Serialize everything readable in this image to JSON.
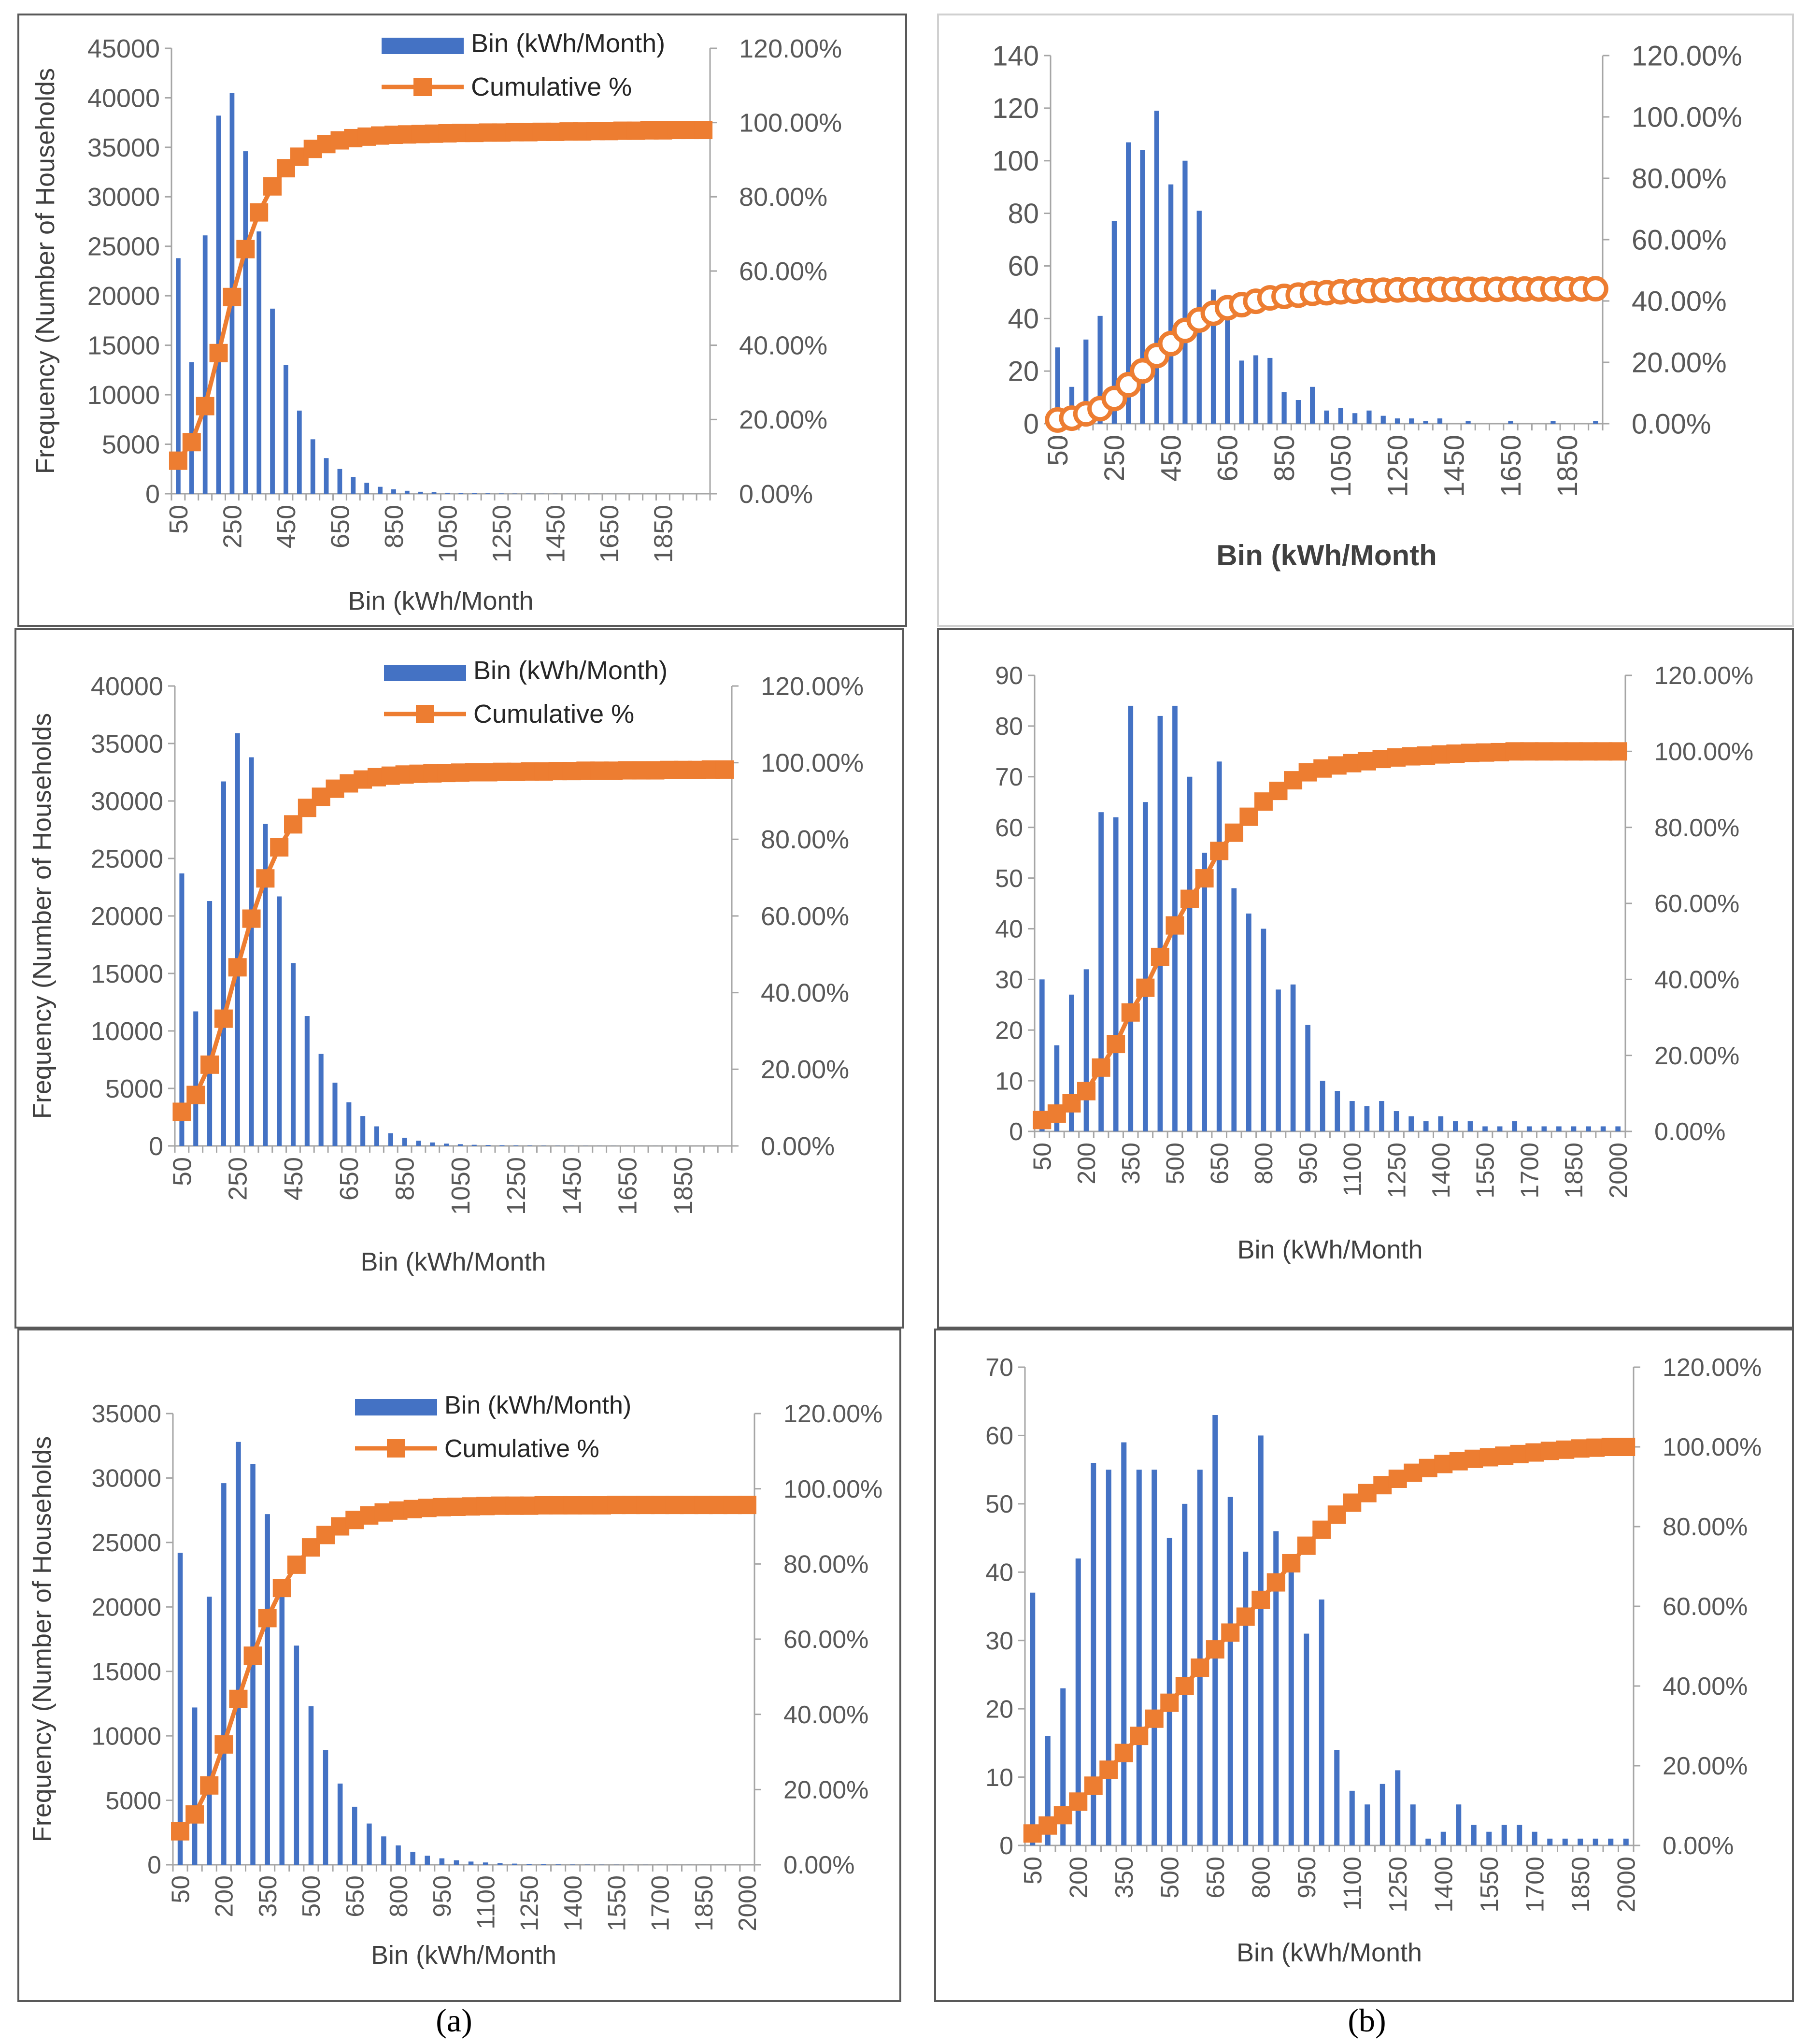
{
  "captions": {
    "a": "(a)",
    "b": "(b)"
  },
  "colors": {
    "bar": "#4472c4",
    "line": "#ed7d31"
  },
  "chart_data": [
    {
      "id": "a1",
      "type": "bar+line",
      "bin_start": 50,
      "bin_step": 50,
      "bin_end": 2000,
      "tick_labels": [
        "50",
        "250",
        "450",
        "650",
        "850",
        "1050",
        "1250",
        "1450",
        "1650",
        "1850"
      ],
      "ylabel": "Frequency (Number of Households",
      "xlabel": "Bin (kWh/Month",
      "ylim": [
        0,
        45000
      ],
      "yticks": [
        "0",
        "5000",
        "10000",
        "15000",
        "20000",
        "25000",
        "30000",
        "35000",
        "40000",
        "45000"
      ],
      "y2lim": [
        0,
        1.2
      ],
      "y2ticks": [
        "0.00%",
        "20.00%",
        "40.00%",
        "60.00%",
        "80.00%",
        "100.00%",
        "120.00%"
      ],
      "legend": {
        "bar": "Bin (kWh/Month)",
        "line": "Cumulative %",
        "position": "top-right"
      },
      "line_marker": "filled-square",
      "series": [
        {
          "name": "Bin (kWh/Month)",
          "kind": "bar",
          "values": [
            23800,
            13300,
            26100,
            38200,
            40500,
            34600,
            26500,
            18700,
            13000,
            8400,
            5500,
            3600,
            2500,
            1700,
            1100,
            700,
            450,
            300,
            200,
            150,
            100,
            80,
            60,
            40,
            30,
            20,
            15,
            10,
            8,
            6,
            5,
            4,
            3,
            3,
            2,
            2,
            1,
            1,
            1,
            1
          ]
        },
        {
          "name": "Cumulative %",
          "kind": "line",
          "values": [
            0.089,
            0.139,
            0.236,
            0.379,
            0.53,
            0.659,
            0.758,
            0.828,
            0.877,
            0.908,
            0.929,
            0.942,
            0.952,
            0.958,
            0.962,
            0.965,
            0.967,
            0.968,
            0.969,
            0.97,
            0.971,
            0.972,
            0.972,
            0.973,
            0.973,
            0.974,
            0.974,
            0.975,
            0.975,
            0.976,
            0.976,
            0.977,
            0.977,
            0.978,
            0.978,
            0.979,
            0.979,
            0.98,
            0.98,
            0.98
          ]
        }
      ]
    },
    {
      "id": "b1",
      "type": "bar+line",
      "bin_start": 50,
      "bin_step": 50,
      "bin_end": 1950,
      "tick_labels": [
        "50",
        "250",
        "450",
        "650",
        "850",
        "1050",
        "1250",
        "1450",
        "1650",
        "1850"
      ],
      "ylabel": "",
      "xlabel": "Bin (kWh/Month",
      "ylim": [
        0,
        140
      ],
      "yticks": [
        "0",
        "20",
        "40",
        "60",
        "80",
        "100",
        "120",
        "140"
      ],
      "y2lim": [
        0,
        1.2
      ],
      "y2ticks": [
        "0.00%",
        "20.00%",
        "40.00%",
        "60.00%",
        "80.00%",
        "100.00%",
        "120.00%"
      ],
      "legend": null,
      "line_marker": "open-circle",
      "series": [
        {
          "name": "",
          "kind": "bar",
          "values": [
            29,
            14,
            32,
            41,
            77,
            107,
            104,
            119,
            91,
            100,
            81,
            51,
            41,
            24,
            26,
            25,
            12,
            9,
            14,
            5,
            6,
            4,
            5,
            3,
            2,
            2,
            1,
            2,
            0,
            1,
            0,
            0,
            1,
            0,
            0,
            1,
            0,
            0,
            1
          ]
        },
        {
          "name": "",
          "kind": "line",
          "values": [
            0.012,
            0.018,
            0.032,
            0.049,
            0.082,
            0.127,
            0.172,
            0.222,
            0.261,
            0.304,
            0.338,
            0.36,
            0.378,
            0.388,
            0.399,
            0.41,
            0.415,
            0.419,
            0.425,
            0.427,
            0.43,
            0.432,
            0.434,
            0.435,
            0.436,
            0.437,
            0.437,
            0.438,
            0.438,
            0.438,
            0.438,
            0.438,
            0.439,
            0.439,
            0.439,
            0.439,
            0.439,
            0.439,
            0.44
          ]
        }
      ]
    },
    {
      "id": "a2",
      "type": "bar+line",
      "bin_start": 50,
      "bin_step": 50,
      "bin_end": 2000,
      "tick_labels": [
        "50",
        "250",
        "450",
        "650",
        "850",
        "1050",
        "1250",
        "1450",
        "1650",
        "1850"
      ],
      "ylabel": "Frequency (Number of Households",
      "xlabel": "Bin (kWh/Month",
      "ylim": [
        0,
        40000
      ],
      "yticks": [
        "0",
        "5000",
        "10000",
        "15000",
        "20000",
        "25000",
        "30000",
        "35000",
        "40000"
      ],
      "y2lim": [
        0,
        1.2
      ],
      "y2ticks": [
        "0.00%",
        "20.00%",
        "40.00%",
        "60.00%",
        "80.00%",
        "100.00%",
        "120.00%"
      ],
      "legend": {
        "bar": "Bin (kWh/Month)",
        "line": "Cumulative %",
        "position": "top-right"
      },
      "line_marker": "filled-square",
      "series": [
        {
          "name": "Bin (kWh/Month)",
          "kind": "bar",
          "values": [
            23700,
            11700,
            21300,
            31700,
            35900,
            33800,
            28000,
            21700,
            15900,
            11300,
            8000,
            5500,
            3800,
            2600,
            1700,
            1100,
            700,
            450,
            300,
            200,
            150,
            100,
            80,
            60,
            40,
            30,
            20,
            15,
            10,
            8,
            6,
            5,
            4,
            3,
            3,
            2,
            2,
            1,
            1,
            1
          ]
        },
        {
          "name": "Cumulative %",
          "kind": "line",
          "values": [
            0.089,
            0.133,
            0.212,
            0.332,
            0.466,
            0.593,
            0.698,
            0.779,
            0.839,
            0.882,
            0.911,
            0.932,
            0.946,
            0.956,
            0.962,
            0.966,
            0.969,
            0.971,
            0.972,
            0.973,
            0.974,
            0.975,
            0.975,
            0.976,
            0.976,
            0.977,
            0.977,
            0.978,
            0.978,
            0.979,
            0.979,
            0.979,
            0.98,
            0.98,
            0.98,
            0.981,
            0.981,
            0.981,
            0.982,
            0.982
          ]
        }
      ]
    },
    {
      "id": "b2",
      "type": "bar+line",
      "bin_start": 50,
      "bin_step": 50,
      "bin_end": 2000,
      "tick_labels": [
        "50",
        "200",
        "350",
        "500",
        "650",
        "800",
        "950",
        "1100",
        "1250",
        "1400",
        "1550",
        "1700",
        "1850",
        "2000"
      ],
      "ylabel": "",
      "xlabel": "Bin (kWh/Month",
      "ylim": [
        0,
        90
      ],
      "yticks": [
        "0",
        "10",
        "20",
        "30",
        "40",
        "50",
        "60",
        "70",
        "80",
        "90"
      ],
      "y2lim": [
        0,
        1.2
      ],
      "y2ticks": [
        "0.00%",
        "20.00%",
        "40.00%",
        "60.00%",
        "80.00%",
        "100.00%",
        "120.00%"
      ],
      "legend": null,
      "line_marker": "filled-square",
      "series": [
        {
          "name": "",
          "kind": "bar",
          "values": [
            30,
            17,
            27,
            32,
            63,
            62,
            84,
            65,
            82,
            84,
            70,
            55,
            73,
            48,
            43,
            40,
            28,
            29,
            21,
            10,
            8,
            6,
            5,
            6,
            4,
            3,
            2,
            3,
            2,
            2,
            1,
            1,
            2,
            1,
            1,
            1,
            1,
            1,
            1,
            1
          ]
        },
        {
          "name": "",
          "kind": "line",
          "values": [
            0.03,
            0.047,
            0.074,
            0.106,
            0.168,
            0.23,
            0.313,
            0.378,
            0.459,
            0.542,
            0.612,
            0.666,
            0.738,
            0.786,
            0.828,
            0.868,
            0.896,
            0.924,
            0.945,
            0.955,
            0.963,
            0.969,
            0.974,
            0.98,
            0.984,
            0.987,
            0.989,
            0.992,
            0.994,
            0.996,
            0.997,
            0.998,
            1.0,
            1.0,
            1.0,
            1.0,
            1.0,
            1.0,
            1.0,
            1.0
          ]
        }
      ]
    },
    {
      "id": "a3",
      "type": "bar+line",
      "bin_start": 50,
      "bin_step": 50,
      "bin_end": 2000,
      "tick_labels": [
        "50",
        "200",
        "350",
        "500",
        "650",
        "800",
        "950",
        "1100",
        "1250",
        "1400",
        "1550",
        "1700",
        "1850",
        "2000"
      ],
      "ylabel": "Frequency (Number of Households",
      "xlabel": "Bin (kWh/Month",
      "ylim": [
        0,
        35000
      ],
      "yticks": [
        "0",
        "5000",
        "10000",
        "15000",
        "20000",
        "25000",
        "30000",
        "35000"
      ],
      "y2lim": [
        0,
        1.2
      ],
      "y2ticks": [
        "0.00%",
        "20.00%",
        "40.00%",
        "60.00%",
        "80.00%",
        "100.00%",
        "120.00%"
      ],
      "legend": {
        "bar": "Bin (kWh/Month)",
        "line": "Cumulative %",
        "position": "top-right"
      },
      "line_marker": "filled-square",
      "series": [
        {
          "name": "Bin (kWh/Month)",
          "kind": "bar",
          "values": [
            24200,
            12200,
            20800,
            29600,
            32800,
            31100,
            27200,
            21500,
            17000,
            12300,
            8900,
            6300,
            4500,
            3200,
            2200,
            1500,
            1000,
            700,
            500,
            350,
            250,
            180,
            130,
            90,
            60,
            40,
            30,
            20,
            15,
            10,
            8,
            6,
            5,
            4,
            3,
            3,
            2,
            2,
            1,
            1
          ]
        },
        {
          "name": "Cumulative %",
          "kind": "line",
          "values": [
            0.089,
            0.134,
            0.211,
            0.32,
            0.441,
            0.556,
            0.656,
            0.736,
            0.798,
            0.844,
            0.877,
            0.9,
            0.917,
            0.929,
            0.937,
            0.942,
            0.946,
            0.949,
            0.951,
            0.952,
            0.953,
            0.954,
            0.955,
            0.955,
            0.955,
            0.956,
            0.956,
            0.956,
            0.956,
            0.956,
            0.957,
            0.957,
            0.957,
            0.957,
            0.957,
            0.957,
            0.957,
            0.957,
            0.957,
            0.957
          ]
        }
      ]
    },
    {
      "id": "b3",
      "type": "bar+line",
      "bin_start": 50,
      "bin_step": 50,
      "bin_end": 2000,
      "tick_labels": [
        "50",
        "200",
        "350",
        "500",
        "650",
        "800",
        "950",
        "1100",
        "1250",
        "1400",
        "1550",
        "1700",
        "1850",
        "2000"
      ],
      "ylabel": "",
      "xlabel": "Bin (kWh/Month",
      "ylim": [
        0,
        70
      ],
      "yticks": [
        "0",
        "10",
        "20",
        "30",
        "40",
        "50",
        "60",
        "70"
      ],
      "y2lim": [
        0,
        1.2
      ],
      "y2ticks": [
        "0.00%",
        "20.00%",
        "40.00%",
        "60.00%",
        "80.00%",
        "100.00%",
        "120.00%"
      ],
      "legend": null,
      "line_marker": "filled-square",
      "series": [
        {
          "name": "",
          "kind": "bar",
          "values": [
            37,
            16,
            23,
            42,
            56,
            55,
            59,
            55,
            55,
            45,
            50,
            55,
            63,
            51,
            43,
            60,
            46,
            41,
            31,
            36,
            14,
            8,
            6,
            9,
            11,
            6,
            1,
            2,
            6,
            3,
            2,
            3,
            3,
            2,
            1,
            1,
            1,
            1,
            1,
            1
          ]
        },
        {
          "name": "",
          "kind": "line",
          "values": [
            0.03,
            0.05,
            0.076,
            0.11,
            0.15,
            0.19,
            0.232,
            0.275,
            0.318,
            0.358,
            0.4,
            0.446,
            0.492,
            0.534,
            0.574,
            0.616,
            0.66,
            0.708,
            0.752,
            0.792,
            0.83,
            0.86,
            0.884,
            0.904,
            0.92,
            0.935,
            0.947,
            0.957,
            0.964,
            0.97,
            0.974,
            0.978,
            0.982,
            0.986,
            0.99,
            0.993,
            0.996,
            0.998,
            1.0,
            1.0
          ]
        }
      ]
    }
  ]
}
